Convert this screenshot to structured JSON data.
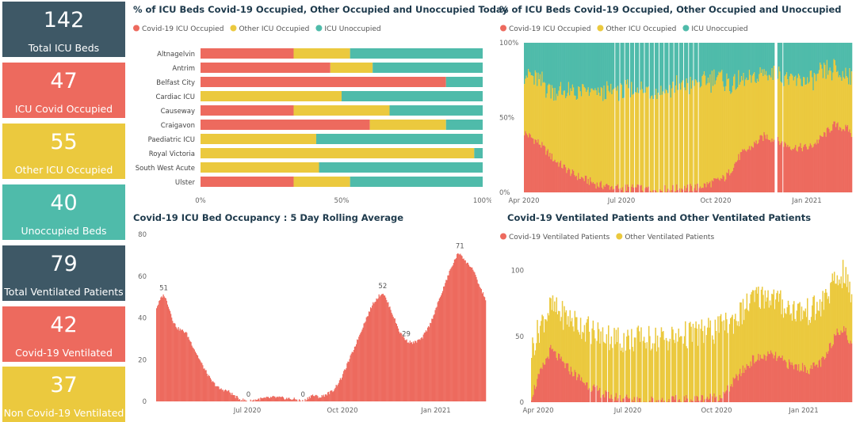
{
  "colors": {
    "covid": "#ed6a5e",
    "other": "#ebc93e",
    "unocc": "#4fbbaa",
    "slate": "#3e5866",
    "title": "#1e3a4c",
    "axis": "#777777"
  },
  "kpis": [
    {
      "value": "142",
      "label": "Total ICU Beds",
      "color": "slate"
    },
    {
      "value": "47",
      "label": "ICU Covid Occupied",
      "color": "red"
    },
    {
      "value": "55",
      "label": "Other ICU Occupied",
      "color": "yel"
    },
    {
      "value": "40",
      "label": "Unoccupied Beds",
      "color": "teal"
    },
    {
      "value": "79",
      "label": "Total Ventilated Patients",
      "color": "slate"
    },
    {
      "value": "42",
      "label": "Covid-19 Ventilated",
      "color": "red"
    },
    {
      "value": "37",
      "label": "Non Covid-19 Ventilated",
      "color": "yel"
    }
  ],
  "titles": {
    "today": "% of ICU Beds Covid-19 Occupied, Other Occupied and Unoccupied Today",
    "trend": "% of ICU Beds Covid-19 Occupied, Other Occupied and Unoccupied",
    "rolling": "Covid-19 ICU Bed Occupancy : 5 Day Rolling Average",
    "vent": "Covid-19 Ventilated Patients and Other Ventilated Patients"
  },
  "chart_data": [
    {
      "id": "today",
      "type": "bar",
      "orientation": "horizontal",
      "stacked": true,
      "categories": [
        "Altnagelvin",
        "Antrim",
        "Belfast City",
        "Cardiac ICU",
        "Causeway",
        "Craigavon",
        "Paediatric ICU",
        "Royal Victoria",
        "South West Acute",
        "Ulster"
      ],
      "series": [
        {
          "name": "Covid-19 ICU Occupied",
          "color": "covid",
          "values": [
            33,
            46,
            87,
            0,
            33,
            60,
            0,
            0,
            0,
            33
          ]
        },
        {
          "name": "Other ICU Occupied",
          "color": "other",
          "values": [
            20,
            15,
            0,
            50,
            34,
            27,
            41,
            97,
            42,
            20
          ]
        },
        {
          "name": "ICU Unoccupied",
          "color": "unocc",
          "values": [
            47,
            39,
            13,
            50,
            33,
            13,
            59,
            3,
            58,
            47
          ]
        }
      ],
      "xticks": [
        "0%",
        "50%",
        "100%"
      ],
      "xlim": [
        0,
        100
      ],
      "legend": "top-left"
    },
    {
      "id": "trend",
      "type": "bar",
      "stacked": true,
      "percent": true,
      "series": [
        {
          "name": "Covid-19 ICU Occupied",
          "color": "covid"
        },
        {
          "name": "Other ICU Occupied",
          "color": "other"
        },
        {
          "name": "ICU Unoccupied",
          "color": "unocc"
        }
      ],
      "x_range": [
        "2020-04-01",
        "2021-02-28"
      ],
      "xticks": [
        "Apr 2020",
        "Jul 2020",
        "Oct 2020",
        "Jan 2021"
      ],
      "yticks": [
        "0%",
        "50%",
        "100%"
      ],
      "ylim": [
        0,
        100
      ],
      "keypoints_covid_pct": [
        [
          0,
          40
        ],
        [
          15,
          33
        ],
        [
          30,
          22
        ],
        [
          50,
          12
        ],
        [
          75,
          5
        ],
        [
          100,
          3
        ],
        [
          140,
          2
        ],
        [
          170,
          3
        ],
        [
          185,
          5
        ],
        [
          205,
          10
        ],
        [
          220,
          25
        ],
        [
          230,
          30
        ],
        [
          245,
          38
        ],
        [
          262,
          33
        ],
        [
          275,
          30
        ],
        [
          290,
          30
        ],
        [
          300,
          35
        ],
        [
          315,
          45
        ],
        [
          330,
          42
        ],
        [
          334,
          38
        ]
      ],
      "keypoints_other_pct": [
        [
          0,
          40
        ],
        [
          20,
          42
        ],
        [
          40,
          50
        ],
        [
          60,
          58
        ],
        [
          80,
          62
        ],
        [
          100,
          65
        ],
        [
          130,
          66
        ],
        [
          160,
          68
        ],
        [
          180,
          70
        ],
        [
          200,
          68
        ],
        [
          220,
          48
        ],
        [
          240,
          42
        ],
        [
          260,
          45
        ],
        [
          280,
          45
        ],
        [
          300,
          43
        ],
        [
          320,
          35
        ],
        [
          334,
          38
        ]
      ],
      "legend": "top-left"
    },
    {
      "id": "rolling",
      "type": "area",
      "series": [
        {
          "name": "",
          "color": "covid"
        }
      ],
      "x_range": [
        "2020-04-01",
        "2021-02-28"
      ],
      "xticks": [
        "Jul 2020",
        "Oct 2020",
        "Jan 2021"
      ],
      "yticks": [
        0,
        20,
        40,
        60,
        80
      ],
      "ylim": [
        0,
        80
      ],
      "keypoints": [
        [
          0,
          45
        ],
        [
          6,
          50
        ],
        [
          9,
          51
        ],
        [
          14,
          46
        ],
        [
          20,
          38
        ],
        [
          25,
          35
        ],
        [
          35,
          33
        ],
        [
          45,
          25
        ],
        [
          55,
          17
        ],
        [
          65,
          10
        ],
        [
          75,
          6
        ],
        [
          85,
          5
        ],
        [
          95,
          2
        ],
        [
          100,
          1
        ],
        [
          110,
          0
        ],
        [
          120,
          1
        ],
        [
          140,
          2
        ],
        [
          165,
          1
        ],
        [
          175,
          0
        ],
        [
          185,
          3
        ],
        [
          195,
          2
        ],
        [
          210,
          5
        ],
        [
          220,
          11
        ],
        [
          235,
          25
        ],
        [
          248,
          38
        ],
        [
          258,
          47
        ],
        [
          266,
          51
        ],
        [
          270,
          52
        ],
        [
          278,
          45
        ],
        [
          290,
          33
        ],
        [
          298,
          29
        ],
        [
          306,
          28
        ],
        [
          316,
          30
        ],
        [
          326,
          37
        ],
        [
          338,
          50
        ],
        [
          350,
          63
        ],
        [
          358,
          70
        ],
        [
          362,
          71
        ],
        [
          368,
          67
        ],
        [
          376,
          64
        ],
        [
          385,
          55
        ],
        [
          392,
          49
        ]
      ],
      "data_labels": [
        {
          "x": 9,
          "y": 51,
          "text": "51"
        },
        {
          "x": 110,
          "y": 0,
          "text": "0"
        },
        {
          "x": 175,
          "y": 0,
          "text": "0"
        },
        {
          "x": 270,
          "y": 52,
          "text": "52"
        },
        {
          "x": 298,
          "y": 29,
          "text": "29"
        },
        {
          "x": 362,
          "y": 71,
          "text": "71"
        }
      ]
    },
    {
      "id": "vent",
      "type": "bar",
      "stacked": true,
      "series": [
        {
          "name": "Covid-19 Ventilated Patients",
          "color": "covid"
        },
        {
          "name": "Other Ventilated Patients",
          "color": "other"
        }
      ],
      "x_range": [
        "2020-04-01",
        "2021-02-28"
      ],
      "xticks": [
        "Apr 2020",
        "Jul 2020",
        "Oct 2020",
        "Jan 2021"
      ],
      "yticks": [
        0,
        50,
        100
      ],
      "ylim": [
        0,
        110
      ],
      "keypoints_covid": [
        [
          0,
          5
        ],
        [
          8,
          20
        ],
        [
          20,
          40
        ],
        [
          35,
          28
        ],
        [
          55,
          15
        ],
        [
          75,
          6
        ],
        [
          95,
          3
        ],
        [
          130,
          1
        ],
        [
          170,
          2
        ],
        [
          200,
          5
        ],
        [
          215,
          20
        ],
        [
          230,
          32
        ],
        [
          250,
          36
        ],
        [
          270,
          28
        ],
        [
          290,
          25
        ],
        [
          305,
          32
        ],
        [
          318,
          55
        ],
        [
          326,
          55
        ],
        [
          334,
          40
        ]
      ],
      "keypoints_total": [
        [
          0,
          40
        ],
        [
          10,
          60
        ],
        [
          20,
          72
        ],
        [
          35,
          65
        ],
        [
          60,
          55
        ],
        [
          90,
          48
        ],
        [
          130,
          48
        ],
        [
          170,
          52
        ],
        [
          195,
          55
        ],
        [
          215,
          65
        ],
        [
          230,
          78
        ],
        [
          245,
          82
        ],
        [
          265,
          72
        ],
        [
          285,
          68
        ],
        [
          300,
          72
        ],
        [
          315,
          90
        ],
        [
          325,
          98
        ],
        [
          334,
          78
        ]
      ],
      "legend": "top-left"
    }
  ]
}
